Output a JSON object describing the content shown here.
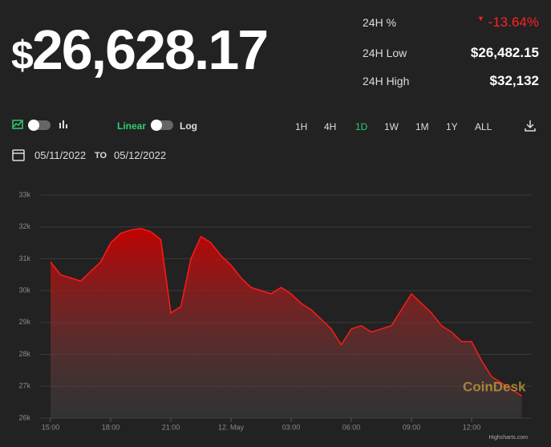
{
  "header": {
    "price": "$26,628.17",
    "stats": [
      {
        "label": "24H %",
        "value": "-13.64%"
      },
      {
        "label": "24H Low",
        "value": "$26,482.15"
      },
      {
        "label": "24H High",
        "value": "$32,132"
      }
    ]
  },
  "controls": {
    "scale_linear": "Linear",
    "scale_log": "Log",
    "ranges": [
      "1H",
      "4H",
      "1D",
      "1W",
      "1M",
      "1Y",
      "ALL"
    ],
    "date_from": "05/11/2022",
    "date_to_word": "TO",
    "date_to": "05/12/2022"
  },
  "watermark": "CoinDesk",
  "credit": "Highcharts.com",
  "chart_data": {
    "type": "area",
    "color": "#ff1a1a",
    "grid": true,
    "categories": [
      "15:00",
      null,
      null,
      null,
      null,
      null,
      "18:00",
      null,
      null,
      null,
      null,
      null,
      "21:00",
      null,
      null,
      null,
      null,
      null,
      "12. May",
      null,
      null,
      null,
      null,
      null,
      "03:00",
      null,
      null,
      null,
      null,
      null,
      "06:00",
      null,
      null,
      null,
      null,
      null,
      "09:00",
      null,
      null,
      null,
      null,
      null,
      "12:00",
      null,
      null,
      null,
      null,
      null
    ],
    "values": [
      30900,
      30500,
      30400,
      30300,
      30600,
      30900,
      31500,
      31800,
      31900,
      31950,
      31850,
      31600,
      29300,
      29500,
      31000,
      31700,
      31500,
      31100,
      30800,
      30400,
      30100,
      30000,
      29900,
      30100,
      29900,
      29600,
      29400,
      29100,
      28800,
      28300,
      28800,
      28900,
      28700,
      28800,
      28900,
      29400,
      29900,
      29600,
      29300,
      28900,
      28700,
      28400,
      28400,
      27800,
      27300,
      27100,
      26900,
      26700
    ],
    "ylim": [
      26000,
      33000
    ],
    "yticks": [
      {
        "value": 26000,
        "label": "26k"
      },
      {
        "value": 27000,
        "label": "27k"
      },
      {
        "value": 28000,
        "label": "28k"
      },
      {
        "value": 29000,
        "label": "29k"
      },
      {
        "value": 30000,
        "label": "30k"
      },
      {
        "value": 31000,
        "label": "31k"
      },
      {
        "value": 32000,
        "label": "32k"
      },
      {
        "value": 33000,
        "label": "33k"
      }
    ]
  }
}
